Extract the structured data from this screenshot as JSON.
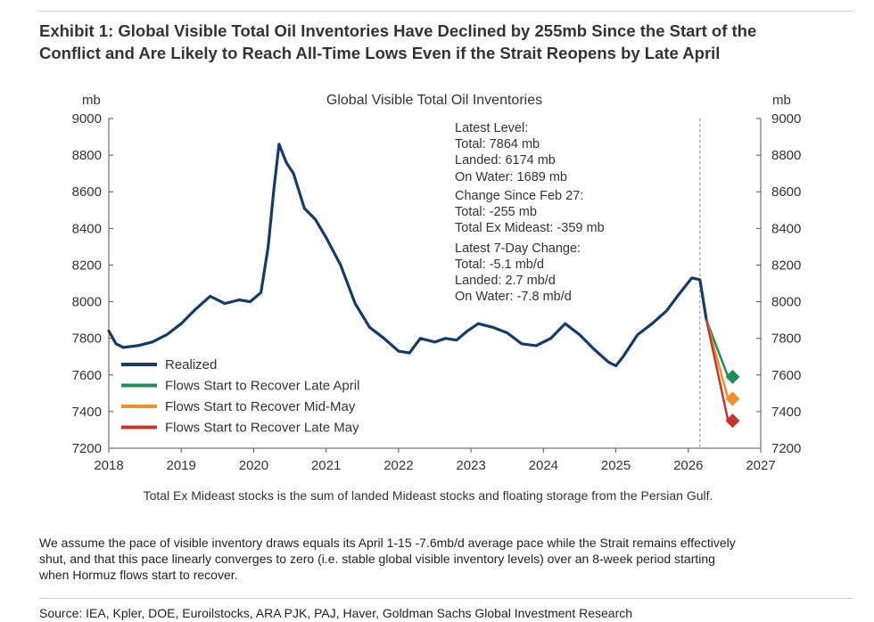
{
  "exhibit": {
    "title_line1": "Exhibit 1: Global Visible Total Oil Inventories Have Declined by 255mb Since the Start of the",
    "title_line2": "Conflict and Are Likely to Reach All-Time Lows Even if the Strait Reopens by Late April"
  },
  "chart_data": {
    "type": "line",
    "title": "Global Visible Total Oil Inventories",
    "ylabel_left": "mb",
    "ylabel_right": "mb",
    "ylim": [
      7200,
      9000
    ],
    "yticks": [
      "7200",
      "7400",
      "7600",
      "7800",
      "8000",
      "8200",
      "8400",
      "8600",
      "8800",
      "9000"
    ],
    "xlim": [
      2018,
      2027
    ],
    "xticks": [
      "2018",
      "2019",
      "2020",
      "2021",
      "2022",
      "2023",
      "2024",
      "2025",
      "2026",
      "2027"
    ],
    "vline_x": 2026.16,
    "legend_position": "bottom-left",
    "grid": false,
    "series": [
      {
        "name": "Realized",
        "color": "#163a6b",
        "x": [
          2018.0,
          2018.1,
          2018.2,
          2018.4,
          2018.6,
          2018.8,
          2019.0,
          2019.2,
          2019.4,
          2019.6,
          2019.8,
          2019.95,
          2020.1,
          2020.2,
          2020.28,
          2020.35,
          2020.45,
          2020.55,
          2020.7,
          2020.85,
          2021.0,
          2021.2,
          2021.4,
          2021.6,
          2021.8,
          2022.0,
          2022.15,
          2022.3,
          2022.5,
          2022.65,
          2022.8,
          2022.95,
          2023.1,
          2023.3,
          2023.5,
          2023.7,
          2023.9,
          2024.1,
          2024.3,
          2024.5,
          2024.7,
          2024.9,
          2025.0,
          2025.1,
          2025.3,
          2025.5,
          2025.7,
          2025.85,
          2025.95,
          2026.05,
          2026.16,
          2026.25
        ],
        "values": [
          7840,
          7770,
          7750,
          7760,
          7780,
          7820,
          7880,
          7960,
          8030,
          7990,
          8010,
          8000,
          8050,
          8300,
          8620,
          8860,
          8760,
          8700,
          8510,
          8450,
          8350,
          8200,
          7990,
          7860,
          7800,
          7730,
          7720,
          7800,
          7780,
          7800,
          7790,
          7840,
          7880,
          7860,
          7830,
          7770,
          7760,
          7800,
          7880,
          7820,
          7740,
          7670,
          7650,
          7700,
          7820,
          7880,
          7950,
          8030,
          8080,
          8130,
          8120,
          7900
        ]
      },
      {
        "name": "Flows Start to Recover Late April",
        "color": "#1f8f5a",
        "x": [
          2026.25,
          2026.55
        ],
        "values": [
          7900,
          7590
        ]
      },
      {
        "name": "Flows Start to Recover Mid-May",
        "color": "#f28e2b",
        "x": [
          2026.25,
          2026.55
        ],
        "values": [
          7900,
          7470
        ]
      },
      {
        "name": "Flows Start to Recover Late May",
        "color": "#c0392b",
        "x": [
          2026.25,
          2026.55
        ],
        "values": [
          7900,
          7350
        ]
      }
    ],
    "annotation_lines": [
      "Latest Level:",
      "Total: 7864 mb",
      "Landed: 6174 mb",
      "On Water: 1689 mb",
      "Change Since Feb 27:",
      "Total: -255 mb",
      "Total Ex Mideast: -359 mb",
      "Latest 7-Day Change:",
      "Total: -5.1 mb/d",
      "Landed: 2.7 mb/d",
      "On Water: -7.8 mb/d"
    ],
    "footnote": "Total Ex Mideast stocks is the sum of landed Mideast stocks and floating storage from the Persian Gulf."
  },
  "note": {
    "line1": "We assume the pace of visible inventory draws equals its April 1-15 -7.6mb/d average pace while the Strait remains effectively",
    "line2": "shut, and that this pace linearly converges to zero (i.e. stable global visible inventory levels) over an 8-week period starting",
    "line3": "when Hormuz flows start to recover."
  },
  "source": "Source: IEA, Kpler, DOE, Euroilstocks, ARA PJK, PAJ, Haver, Goldman Sachs Global Investment Research"
}
